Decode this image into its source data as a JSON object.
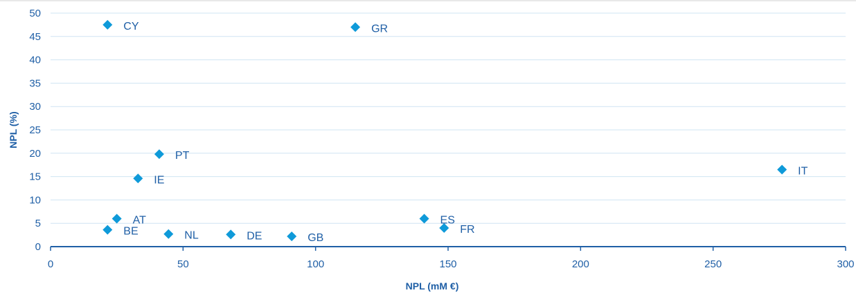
{
  "chart_data": {
    "type": "scatter",
    "xlabel": "NPL (mM €)",
    "ylabel": "NPL (%)",
    "xlim": [
      0,
      300
    ],
    "ylim": [
      0,
      50
    ],
    "xticks": [
      0,
      50,
      100,
      150,
      200,
      250,
      300
    ],
    "yticks": [
      0,
      5,
      10,
      15,
      20,
      25,
      30,
      35,
      40,
      45,
      50
    ],
    "grid": "horizontal",
    "legend": "none",
    "marker": "diamond",
    "colors": {
      "marker": "#0f9ad9",
      "text": "#1f5fa6",
      "grid": "#cfe4f3",
      "axis": "#1f5fa6"
    },
    "points": [
      {
        "label": "CY",
        "x": 21.5,
        "y": 47.5
      },
      {
        "label": "GR",
        "x": 115,
        "y": 47
      },
      {
        "label": "PT",
        "x": 41,
        "y": 19.8
      },
      {
        "label": "IE",
        "x": 33,
        "y": 14.6
      },
      {
        "label": "IT",
        "x": 276,
        "y": 16.5
      },
      {
        "label": "AT",
        "x": 25,
        "y": 6
      },
      {
        "label": "BE",
        "x": 21.5,
        "y": 3.6
      },
      {
        "label": "NL",
        "x": 44.5,
        "y": 2.7
      },
      {
        "label": "DE",
        "x": 68,
        "y": 2.6
      },
      {
        "label": "GB",
        "x": 91,
        "y": 2.2
      },
      {
        "label": "ES",
        "x": 141,
        "y": 6
      },
      {
        "label": "FR",
        "x": 148.5,
        "y": 4
      }
    ]
  }
}
